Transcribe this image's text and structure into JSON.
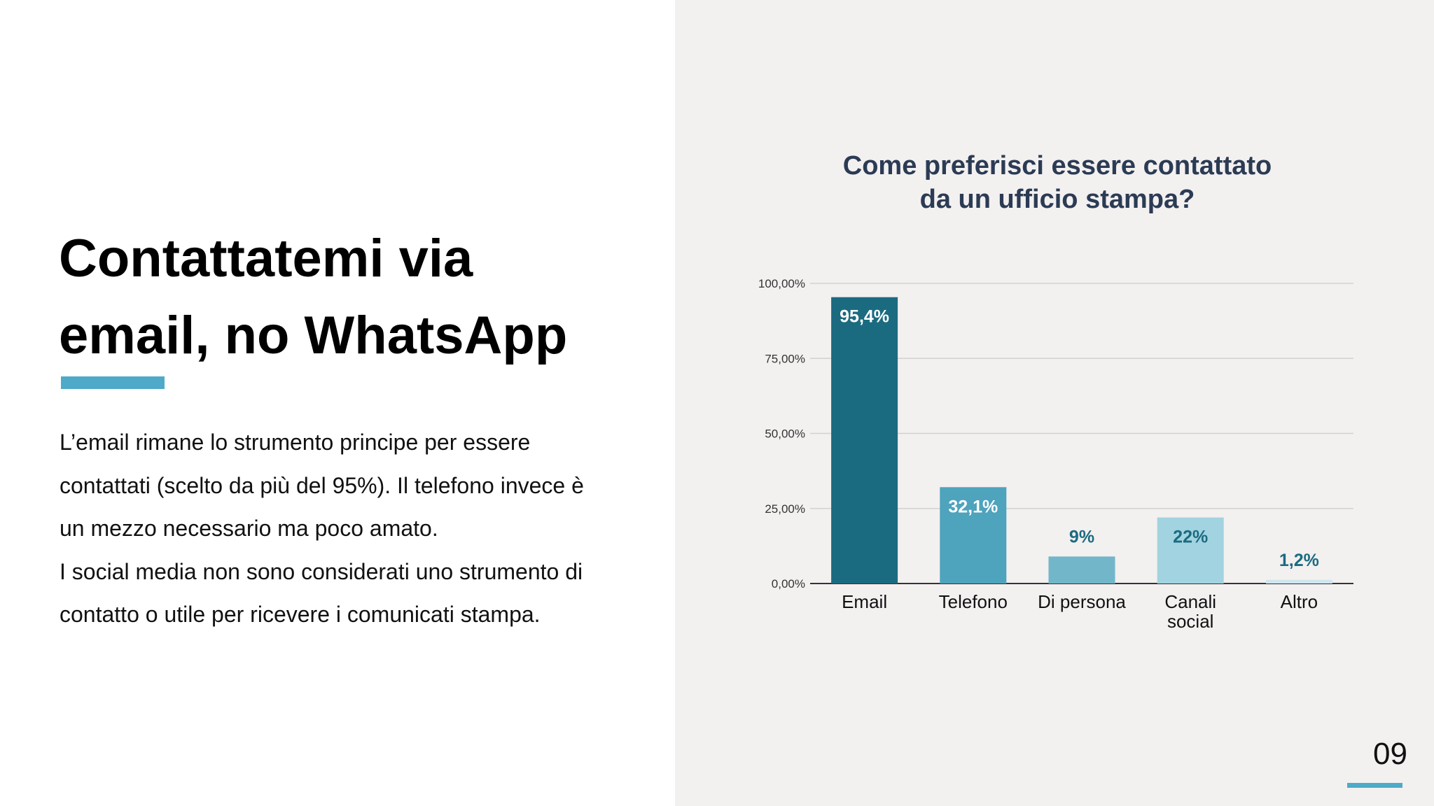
{
  "slide": {
    "title_lines": [
      "Contattatemi via",
      "email, no WhatsApp"
    ],
    "body_lines": [
      "L’email rimane lo strumento principe per essere",
      "contattati (scelto da più del 95%). Il telefono invece è",
      "un mezzo necessario ma poco amato.",
      "I social media non sono considerati uno strumento di",
      "contatto o utile per ricevere i comunicati stampa."
    ],
    "page_number": "09",
    "colors": {
      "accent": "#4eaac8",
      "right_panel_bg": "#f3f0f0",
      "title": "#2b3b54"
    }
  },
  "chart_data": {
    "type": "bar",
    "title_lines": [
      "Come preferisci essere contattato",
      "da un ufficio stampa?"
    ],
    "categories": [
      [
        "Email"
      ],
      [
        "Telefono"
      ],
      [
        "Di persona"
      ],
      [
        "Canali",
        "social"
      ],
      [
        "Altro"
      ]
    ],
    "values": [
      95.4,
      32.1,
      9,
      22,
      1.2
    ],
    "value_labels": [
      "95,4%",
      "32,1%",
      "9%",
      "22%",
      "1,2%"
    ],
    "bar_colors": [
      "#1b6b80",
      "#4ea3bd",
      "#72b6ca",
      "#a2d3e0",
      "#cfe6ee"
    ],
    "value_label_position": [
      "inside",
      "inside",
      "above",
      "inside",
      "above"
    ],
    "value_label_colors": [
      "#ffffff",
      "#ffffff",
      "#1b6b80",
      "#1b6b80",
      "#1b6b80"
    ],
    "ylim": [
      0,
      100
    ],
    "yticks": [
      0,
      25,
      50,
      75,
      100
    ],
    "ytick_labels": [
      "0,00%",
      "25,00%",
      "50,00%",
      "75,00%",
      "100,00%"
    ],
    "grid": true,
    "xlabel": "",
    "ylabel": ""
  }
}
